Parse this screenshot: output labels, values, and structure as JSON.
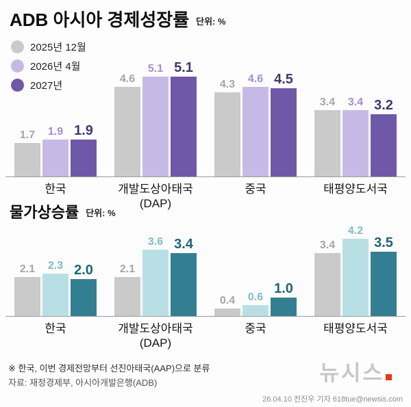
{
  "chart_data": [
    {
      "type": "bar",
      "title": "ADB 아시아 경제성장률",
      "unit_label": "단위: %",
      "categories": [
        "한국",
        "개발도상아태국",
        "중국",
        "태평양도서국"
      ],
      "category_subs": [
        "",
        "(DAP)",
        "",
        ""
      ],
      "series": [
        {
          "name": "2025년 12월",
          "bar_color": "#cacaca",
          "label_color": "#a5a5a5",
          "values": [
            1.7,
            4.6,
            4.3,
            3.4
          ],
          "emphasis": false
        },
        {
          "name": "2026년 4월",
          "bar_color": "#c7b9e6",
          "label_color": "#a08ed2",
          "values": [
            1.9,
            5.1,
            4.6,
            3.4
          ],
          "emphasis": false
        },
        {
          "name": "2027년",
          "bar_color": "#7058a8",
          "label_color": "#3f3870",
          "values": [
            1.9,
            5.1,
            4.5,
            3.2
          ],
          "emphasis": true
        }
      ],
      "ylim": [
        0,
        5.6
      ],
      "grid": false,
      "legend_position": "top-left"
    },
    {
      "type": "bar",
      "title": "물가상승률",
      "unit_label": "단위: %",
      "categories": [
        "한국",
        "개발도상아태국",
        "중국",
        "태평양도서국"
      ],
      "category_subs": [
        "",
        "(DAP)",
        "",
        ""
      ],
      "series": [
        {
          "name": "2025년 12월",
          "bar_color": "#cacaca",
          "label_color": "#a5a5a5",
          "values": [
            2.1,
            2.1,
            0.4,
            3.4
          ],
          "emphasis": false
        },
        {
          "name": "2026년 4월",
          "bar_color": "#b8dfe4",
          "label_color": "#7cbcc8",
          "values": [
            2.3,
            3.6,
            0.6,
            4.2
          ],
          "emphasis": false
        },
        {
          "name": "2027년",
          "bar_color": "#337f91",
          "label_color": "#1c6576",
          "values": [
            2.0,
            3.4,
            1.0,
            3.5
          ],
          "emphasis": true
        }
      ],
      "ylim": [
        0,
        4.6
      ],
      "grid": false,
      "legend_position": "none"
    }
  ],
  "footer": {
    "note": "※ 한국, 이번 경제전망부터 선진아태국(AAP)으로 분류",
    "source": "자료: 재정경제부, 아시아개발은행(ADB)",
    "logo_text": "뉴시스",
    "byline": "26.04.10 전진우 기자 618tue@newsis.com"
  }
}
